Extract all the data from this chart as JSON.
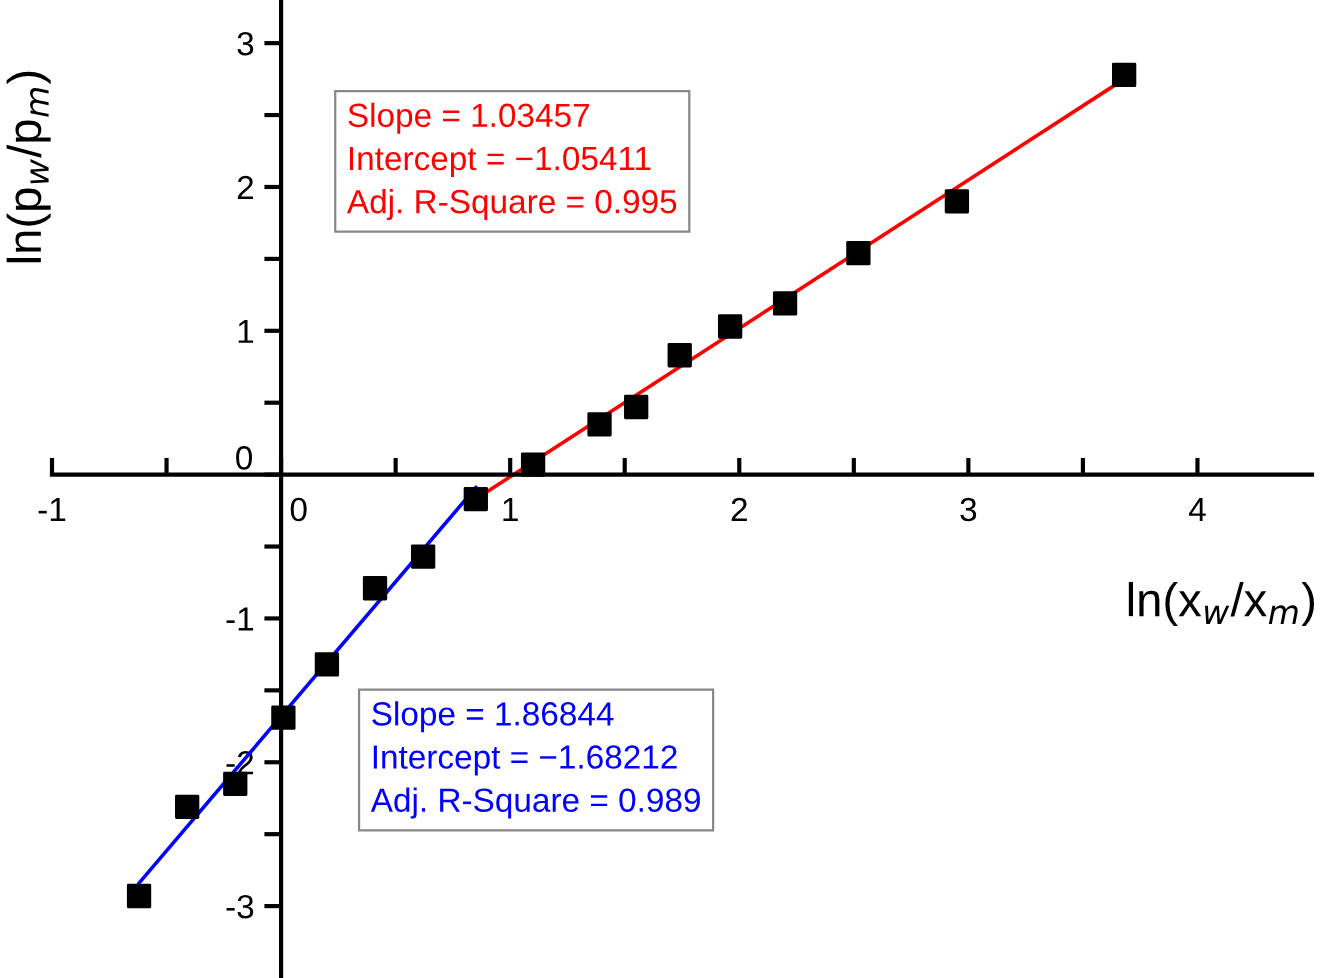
{
  "chart_data": {
    "type": "scatter",
    "xlabel": "ln(x$_{w}$/x$_{m}$)",
    "ylabel": "ln(p$_{w}$/p$_{m}$)",
    "series": [
      {
        "color": "#000000",
        "marker": "square",
        "x": [
          -0.62,
          -0.41,
          -0.2,
          0.01,
          0.2,
          0.41,
          0.62,
          0.85,
          1.1,
          1.39,
          1.55,
          1.74,
          1.96,
          2.2,
          2.52,
          2.95,
          3.68
        ],
        "values": [
          -2.93,
          -2.31,
          -2.15,
          -1.69,
          -1.32,
          -0.79,
          -0.57,
          -0.17,
          0.07,
          0.35,
          0.47,
          0.83,
          1.03,
          1.19,
          1.54,
          1.9,
          2.78
        ]
      },
      {
        "type": "line",
        "color": "#ff0000",
        "x": [
          0.85,
          3.68
        ],
        "values": [
          -0.17,
          2.75
        ]
      },
      {
        "type": "line",
        "color": "#0000ff",
        "x": [
          -0.62,
          0.85
        ],
        "values": [
          -2.84,
          -0.09
        ]
      }
    ],
    "annotations": [
      "Slope = 1.03457\nIntercept = −1.05411\nAdj. R-Square = 0.995",
      "Slope = 1.86844\nIntercept = −1.68212\nAdj. R-Square = 0.989"
    ],
    "xlim": [
      -1,
      4.5
    ],
    "ylim": [
      -3.5,
      3.3
    ],
    "xticks": [
      -1,
      {
        "value": -0.5,
        "label": null
      },
      0,
      {
        "value": 0.5,
        "label": null
      },
      1,
      {
        "value": 1.5,
        "label": null
      },
      2,
      {
        "value": 2.5,
        "label": null
      },
      3,
      {
        "value": 3.5,
        "label": null
      },
      4
    ],
    "yticks": [
      -3,
      {
        "value": -2.5,
        "label": null
      },
      -2,
      {
        "value": -1.5,
        "label": null
      },
      -1,
      {
        "value": -0.5,
        "label": null
      },
      0,
      {
        "value": 0.5,
        "label": null
      },
      1,
      {
        "value": 1.5,
        "label": null
      },
      2,
      {
        "value": 2.5,
        "label": null
      },
      3
    ],
    "grid": false,
    "legend": false
  }
}
